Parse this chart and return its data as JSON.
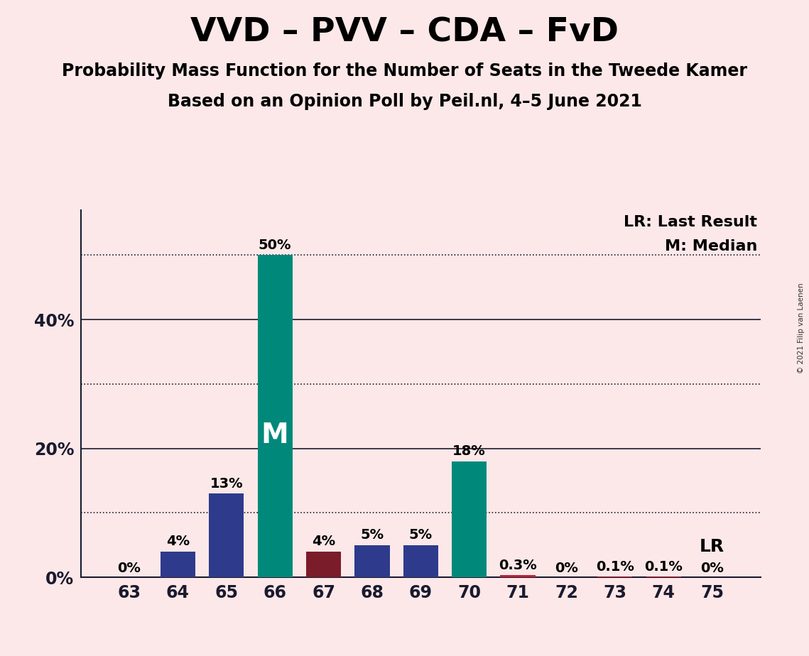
{
  "title": "VVD – PVV – CDA – FvD",
  "subtitle1": "Probability Mass Function for the Number of Seats in the Tweede Kamer",
  "subtitle2": "Based on an Opinion Poll by Peil.nl, 4–5 June 2021",
  "watermark": "© 2021 Filip van Laenen",
  "seats": [
    63,
    64,
    65,
    66,
    67,
    68,
    69,
    70,
    71,
    72,
    73,
    74,
    75
  ],
  "values": [
    0.0,
    4.0,
    13.0,
    50.0,
    4.0,
    5.0,
    5.0,
    18.0,
    0.3,
    0.0,
    0.1,
    0.1,
    0.0
  ],
  "bar_colors": [
    "#2e3a8c",
    "#2e3a8c",
    "#2e3a8c",
    "#00897b",
    "#7b1c2a",
    "#2e3a8c",
    "#2e3a8c",
    "#00897b",
    "#c0203a",
    "#c0203a",
    "#c0203a",
    "#c0203a",
    "#c0203a"
  ],
  "bar_labels": [
    "0%",
    "4%",
    "13%",
    "50%",
    "4%",
    "5%",
    "5%",
    "18%",
    "0.3%",
    "0%",
    "0.1%",
    "0.1%",
    "0%"
  ],
  "median_seat": 66,
  "median_label": "M",
  "lr_label": "LR",
  "legend_lr": "LR: Last Result",
  "legend_m": "M: Median",
  "solid_gridlines": [
    20,
    40
  ],
  "dotted_gridlines": [
    10,
    30,
    50
  ],
  "ytick_positions": [
    0,
    20,
    40
  ],
  "ytick_labels": [
    "0%",
    "20%",
    "40%"
  ],
  "ylim": [
    0,
    57
  ],
  "background_color": "#fce8e8",
  "title_fontsize": 34,
  "subtitle_fontsize": 17,
  "bar_label_fontsize": 14,
  "axis_tick_fontsize": 17,
  "median_label_color": "#ffffff",
  "median_label_fontsize": 28,
  "lr_fontsize": 18,
  "legend_fontsize": 16
}
